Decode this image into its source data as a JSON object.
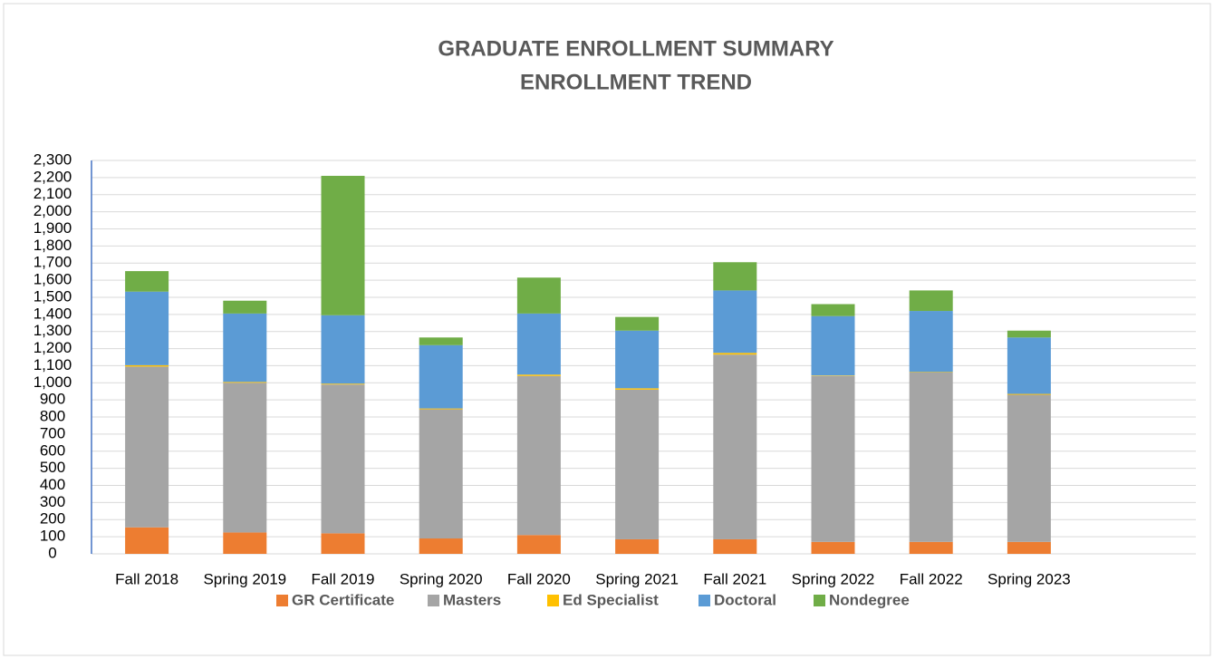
{
  "chart_data": {
    "type": "bar",
    "stacked": true,
    "title": "GRADUATE ENROLLMENT SUMMARY",
    "subtitle": "ENROLLMENT TREND",
    "categories": [
      "Fall 2018",
      "Spring 2019",
      "Fall 2019",
      "Spring 2020",
      "Fall 2020",
      "Spring 2021",
      "Fall 2021",
      "Spring 2022",
      "Fall 2022",
      "Spring 2023"
    ],
    "series": [
      {
        "name": "GR Certificate",
        "color": "#ED7D31",
        "values": [
          155,
          125,
          120,
          90,
          110,
          85,
          85,
          70,
          70,
          70
        ]
      },
      {
        "name": "Masters",
        "color": "#A5A5A5",
        "values": [
          940,
          875,
          870,
          755,
          930,
          875,
          1080,
          970,
          990,
          860
        ]
      },
      {
        "name": "Ed Specialist",
        "color": "#FFC000",
        "values": [
          8,
          5,
          5,
          5,
          8,
          8,
          10,
          3,
          3,
          5
        ]
      },
      {
        "name": "Doctoral",
        "color": "#5B9BD5",
        "values": [
          430,
          400,
          400,
          370,
          357,
          337,
          365,
          347,
          357,
          330
        ]
      },
      {
        "name": "Nondegree",
        "color": "#70AD47",
        "values": [
          120,
          75,
          815,
          45,
          210,
          80,
          165,
          70,
          120,
          40
        ]
      }
    ],
    "ylim": [
      0,
      2300
    ],
    "yticks": [
      0,
      100,
      200,
      300,
      400,
      500,
      600,
      700,
      800,
      900,
      {
        "value": 1000,
        "label": "1,000"
      },
      {
        "value": 1100,
        "label": "1,100"
      },
      {
        "value": 1200,
        "label": "1,200"
      },
      {
        "value": 1300,
        "label": "1,300"
      },
      {
        "value": 1400,
        "label": "1,400"
      },
      {
        "value": 1500,
        "label": "1,500"
      },
      {
        "value": 1600,
        "label": "1,600"
      },
      {
        "value": 1700,
        "label": "1,700"
      },
      {
        "value": 1800,
        "label": "1,800"
      },
      {
        "value": 1900,
        "label": "1,900"
      },
      {
        "value": 2000,
        "label": "2,000"
      },
      {
        "value": 2100,
        "label": "2,100"
      },
      {
        "value": 2200,
        "label": "2,200"
      },
      {
        "value": 2300,
        "label": "2,300"
      }
    ],
    "grid": true,
    "legend": "bottom"
  }
}
